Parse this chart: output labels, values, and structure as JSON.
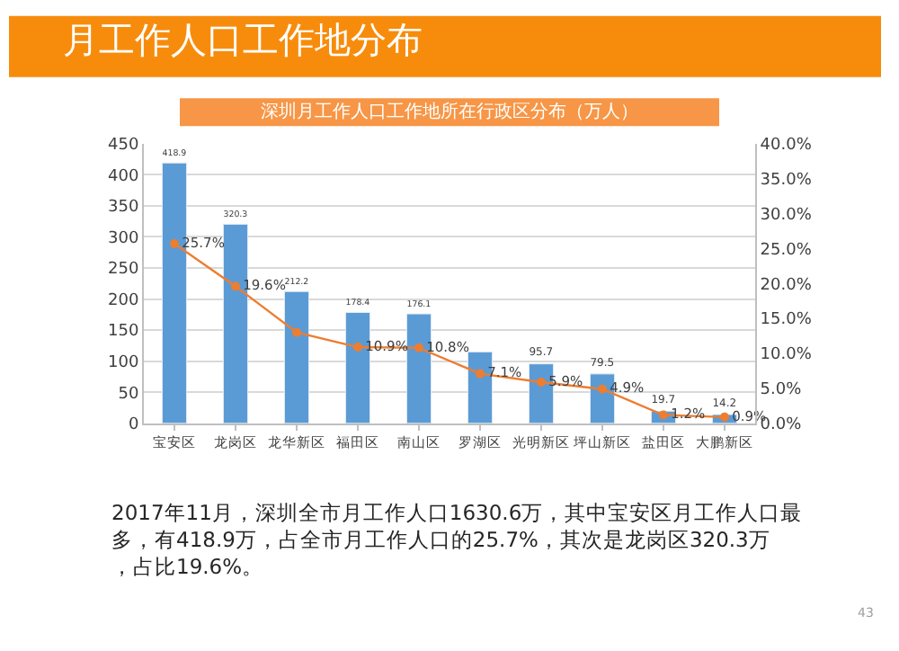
{
  "chart_data": {
    "type": "bar",
    "title": "月工作人口工作地分布",
    "subtitle": "深圳月工作人口工作地所在行政区分布（万人）",
    "categories": [
      "宝安区",
      "龙岗区",
      "龙华新区",
      "福田区",
      "南山区",
      "罗湖区",
      "光明新区",
      "坪山新区",
      "盐田区",
      "大鹏新区"
    ],
    "series": [
      {
        "color": "#5b9bd5",
        "values": [
          418.9,
          320.3,
          212.2,
          178.4,
          176.1,
          115,
          95.7,
          79.5,
          19.7,
          14.2
        ],
        "value_labels": [
          "418.9",
          "320.3",
          "212.2",
          "178.4",
          "176.1",
          null,
          "95.7",
          "79.5",
          "19.7",
          "14.2"
        ]
      },
      {
        "type": "line",
        "axis": "y2",
        "color": "#ed7d31",
        "marker": "circle",
        "values": [
          25.7,
          19.6,
          13.0,
          10.9,
          10.8,
          7.1,
          5.9,
          4.9,
          1.2,
          0.9
        ],
        "value_labels": [
          "25.7%",
          "19.6%",
          null,
          "10.9%",
          "10.8%",
          "7.1%",
          "5.9%",
          "4.9%",
          "1.2%",
          "0.9%"
        ]
      }
    ],
    "ylim": [
      0,
      450
    ],
    "yticks": [
      0,
      50,
      100,
      150,
      200,
      250,
      300,
      350,
      400,
      450
    ],
    "y2lim": [
      0,
      40
    ],
    "y2ticks": [
      {
        "value": 0,
        "label": "0.0%"
      },
      {
        "value": 5,
        "label": "5.0%"
      },
      {
        "value": 10,
        "label": "10.0%"
      },
      {
        "value": 15,
        "label": "15.0%"
      },
      {
        "value": 20,
        "label": "20.0%"
      },
      {
        "value": 25,
        "label": "25.0%"
      },
      {
        "value": 30,
        "label": "30.0%"
      },
      {
        "value": 35,
        "label": "35.0%"
      },
      {
        "value": 40,
        "label": "40.0%"
      }
    ],
    "grid": "y",
    "annotations": [
      "2017年11月，深圳全市月工作人口1630.6万，其中宝安区月工作人口最多，有418.9万，占全市月工作人口的25.7%，其次是龙岗区320.3万，占比19.6%。",
      "43"
    ]
  }
}
